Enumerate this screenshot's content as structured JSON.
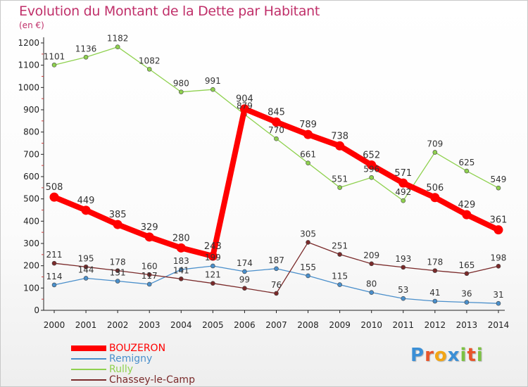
{
  "chart_data": {
    "type": "line",
    "title": "Evolution du Montant de la Dette par Habitant",
    "unit": "(en €)",
    "x": [
      "2000",
      "2001",
      "2002",
      "2003",
      "2004",
      "2005",
      "2006",
      "2007",
      "2008",
      "2009",
      "2010",
      "2011",
      "2012",
      "2013",
      "2014"
    ],
    "ylim": [
      0,
      1200
    ],
    "yticks": [
      0,
      100,
      200,
      300,
      400,
      500,
      600,
      700,
      800,
      900,
      1000,
      1100,
      1200
    ],
    "grid": false,
    "legend_position": "bottom-left",
    "series": [
      {
        "name": "BOUZERON",
        "color": "#ff0000",
        "values": [
          508,
          449,
          385,
          329,
          280,
          243,
          904,
          845,
          789,
          738,
          652,
          571,
          506,
          429,
          361
        ]
      },
      {
        "name": "Remigny",
        "color": "#4a8fcb",
        "values": [
          114,
          144,
          131,
          117,
          183,
          199,
          174,
          187,
          155,
          115,
          80,
          53,
          41,
          36,
          31
        ]
      },
      {
        "name": "Rully",
        "color": "#8fd14f",
        "values": [
          1101,
          1136,
          1182,
          1082,
          980,
          991,
          879,
          770,
          661,
          551,
          596,
          492,
          709,
          625,
          549
        ]
      },
      {
        "name": "Chassey-le-Camp",
        "color": "#7a2a2a",
        "values": [
          211,
          195,
          178,
          160,
          141,
          121,
          99,
          76,
          305,
          251,
          209,
          193,
          178,
          165,
          198
        ]
      }
    ]
  },
  "logo": {
    "text": "Proxiti",
    "letters": [
      {
        "ch": "P",
        "color": "#3b8fd6"
      },
      {
        "ch": "r",
        "color": "#e8542a"
      },
      {
        "ch": "o",
        "color": "#f2a516"
      },
      {
        "ch": "x",
        "color": "#3b8fd6"
      },
      {
        "ch": "i",
        "color": "#7cc242"
      },
      {
        "ch": "t",
        "color": "#e8542a"
      },
      {
        "ch": "i",
        "color": "#7cc242"
      }
    ]
  }
}
